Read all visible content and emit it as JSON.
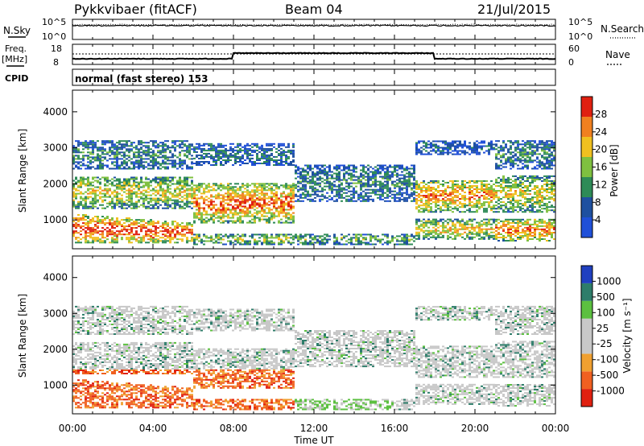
{
  "header": {
    "station": "Pykkvibaer (fitACF)",
    "beam": "Beam 04",
    "date": "21/Jul/2015"
  },
  "panels": {
    "nsky_label": "N.Sky",
    "nsky_ticks": [
      "10^5",
      "10^0"
    ],
    "nsearch_label": "N.Search",
    "nsearch_ticks": [
      "10^5",
      "10^0"
    ],
    "freq_label_1": "Freq.",
    "freq_label_2": "[MHz]",
    "freq_ticks": [
      "18",
      "8"
    ],
    "nave_label": "Nave",
    "nave_ticks": [
      "60",
      "0"
    ],
    "cpid_label": "CPID",
    "cpid_text": "normal (fast stereo) 153"
  },
  "chart_data": [
    {
      "type": "heatmap",
      "name": "power",
      "ylabel": "Slant Range [km]",
      "yticks": [
        "1000",
        "2000",
        "3000",
        "4000"
      ],
      "ylim": [
        200,
        4600
      ],
      "xlim_hours": [
        0,
        24
      ],
      "colorbar_label": "Power [dB]",
      "colorbar_ticks": [
        "4",
        "8",
        "12",
        "16",
        "20",
        "24",
        "28"
      ],
      "colorbar_colors": [
        "#2050d8",
        "#1e50a0",
        "#2e8b57",
        "#7fc040",
        "#f0c020",
        "#f08020",
        "#e02010"
      ]
    },
    {
      "type": "heatmap",
      "name": "velocity",
      "ylabel": "Slant Range [km]",
      "yticks": [
        "1000",
        "2000",
        "3000",
        "4000"
      ],
      "ylim": [
        200,
        4600
      ],
      "xlim_hours": [
        0,
        24
      ],
      "colorbar_label": "Velocity [m s⁻¹]",
      "colorbar_ticks": [
        "1000",
        "500",
        "100",
        "25",
        "-25",
        "-100",
        "-500",
        "-1000"
      ],
      "colorbar_colors": [
        "#2040c0",
        "#2e7d6a",
        "#5cc040",
        "#c8c8c8",
        "#c8c8c8",
        "#f0a030",
        "#f06020",
        "#e02010"
      ]
    }
  ],
  "xaxis": {
    "ticks": [
      "00:00",
      "04:00",
      "08:00",
      "12:00",
      "16:00",
      "20:00",
      "00:00"
    ],
    "label": "Time UT"
  }
}
